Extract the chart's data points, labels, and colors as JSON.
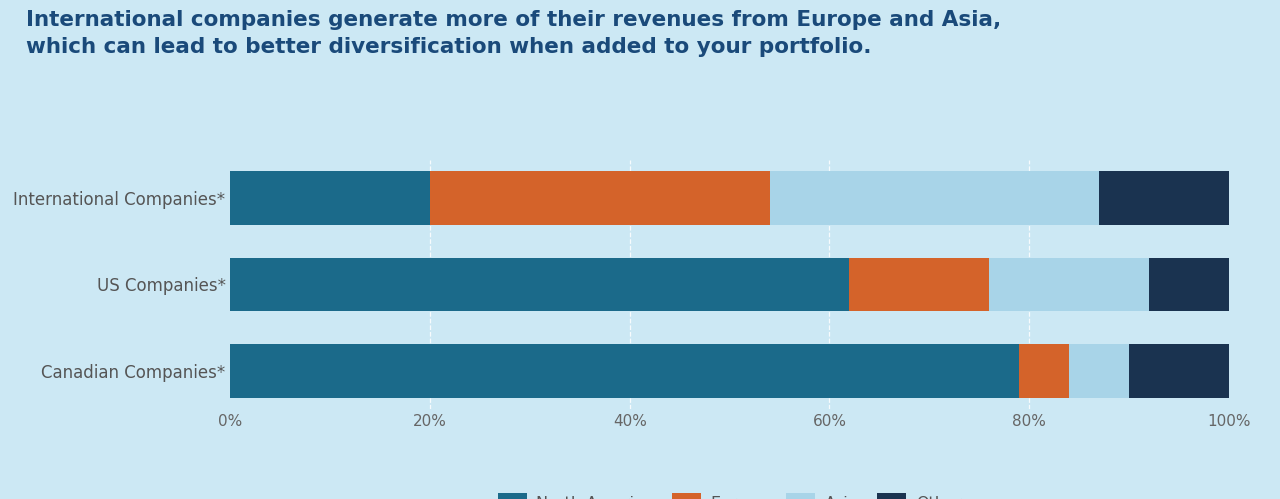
{
  "title_line1": "International companies generate more of their revenues from Europe and Asia,",
  "title_line2": "which can lead to better diversification when added to your portfolio.",
  "categories": [
    "International Companies*",
    "US Companies*",
    "Canadian Companies*"
  ],
  "segments": {
    "North America": [
      20,
      62,
      79
    ],
    "Europe": [
      34,
      14,
      5
    ],
    "Asia": [
      33,
      16,
      6
    ],
    "Other": [
      13,
      8,
      10
    ]
  },
  "colors": {
    "North America": "#1b6a8a",
    "Europe": "#d4632a",
    "Asia": "#a8d4e8",
    "Other": "#1a3350"
  },
  "background_color": "#cce8f4",
  "title_color": "#1a4a7a",
  "axis_label_color": "#555555",
  "tick_label_color": "#666666",
  "xlabel_ticks": [
    "0%",
    "20%",
    "40%",
    "60%",
    "80%",
    "100%"
  ],
  "xlabel_vals": [
    0,
    20,
    40,
    60,
    80,
    100
  ],
  "bar_height": 0.62,
  "title_fontsize": 15.5,
  "label_fontsize": 12,
  "tick_fontsize": 11,
  "legend_fontsize": 11.5
}
